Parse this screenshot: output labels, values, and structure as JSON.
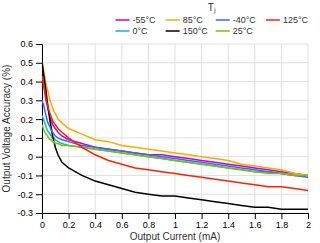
{
  "chart_data": {
    "type": "line",
    "xlabel": "Output Current (mA)",
    "ylabel": "Output Voltage Accuracy (%)",
    "legend_title": "Tⱼ",
    "x": [
      0.001,
      0.005,
      0.01,
      0.02,
      0.03,
      0.04,
      0.05,
      0.06,
      0.07,
      0.08,
      0.09,
      0.1,
      0.12,
      0.15,
      0.2,
      0.3,
      0.4,
      0.5,
      0.6,
      0.7,
      0.8,
      0.9,
      1.0,
      1.1,
      1.2,
      1.3,
      1.4,
      1.5,
      1.6,
      1.7,
      1.8,
      1.9,
      2.0
    ],
    "series": [
      {
        "name": "-55°C",
        "color": "#cc00cc",
        "values": [
          0.43,
          0.42,
          0.4,
          0.35,
          0.3,
          0.27,
          0.24,
          0.21,
          0.19,
          0.17,
          0.16,
          0.15,
          0.13,
          0.11,
          0.09,
          0.07,
          0.05,
          0.04,
          0.03,
          0.02,
          0.01,
          0.01,
          0.0,
          -0.01,
          -0.02,
          -0.03,
          -0.04,
          -0.05,
          -0.06,
          -0.07,
          -0.08,
          -0.09,
          -0.1
        ]
      },
      {
        "name": "0°C",
        "color": "#00bbcc",
        "values": [
          0.22,
          0.21,
          0.2,
          0.18,
          0.16,
          0.14,
          0.13,
          0.12,
          0.11,
          0.1,
          0.1,
          0.09,
          0.08,
          0.07,
          0.06,
          0.05,
          0.04,
          0.03,
          0.02,
          0.01,
          0.0,
          -0.01,
          -0.02,
          -0.03,
          -0.04,
          -0.05,
          -0.06,
          -0.07,
          -0.08,
          -0.08,
          -0.09,
          -0.1,
          -0.1
        ]
      },
      {
        "name": "85°C",
        "color": "#ffaa00",
        "values": [
          0.5,
          0.49,
          0.47,
          0.43,
          0.39,
          0.36,
          0.33,
          0.3,
          0.28,
          0.26,
          0.24,
          0.23,
          0.2,
          0.18,
          0.15,
          0.12,
          0.09,
          0.08,
          0.06,
          0.05,
          0.04,
          0.03,
          0.02,
          0.01,
          0.0,
          -0.01,
          -0.02,
          -0.04,
          -0.05,
          -0.06,
          -0.07,
          -0.09,
          -0.1
        ]
      },
      {
        "name": "150°C",
        "color": "#000000",
        "values": [
          0.5,
          0.48,
          0.45,
          0.4,
          0.35,
          0.29,
          0.24,
          0.19,
          0.15,
          0.11,
          0.08,
          0.05,
          0.01,
          -0.03,
          -0.06,
          -0.1,
          -0.13,
          -0.15,
          -0.17,
          -0.19,
          -0.2,
          -0.21,
          -0.21,
          -0.22,
          -0.23,
          -0.24,
          -0.25,
          -0.26,
          -0.27,
          -0.27,
          -0.28,
          -0.28,
          -0.28
        ]
      },
      {
        "name": "-40°C",
        "color": "#3366ff",
        "values": [
          0.3,
          0.29,
          0.28,
          0.25,
          0.22,
          0.19,
          0.17,
          0.16,
          0.14,
          0.13,
          0.12,
          0.11,
          0.1,
          0.09,
          0.08,
          0.06,
          0.05,
          0.04,
          0.03,
          0.02,
          0.01,
          0.0,
          -0.01,
          -0.02,
          -0.03,
          -0.04,
          -0.05,
          -0.06,
          -0.07,
          -0.08,
          -0.09,
          -0.1,
          -0.11
        ]
      },
      {
        "name": "25°C",
        "color": "#88bb00",
        "values": [
          0.17,
          0.16,
          0.15,
          0.13,
          0.12,
          0.11,
          0.1,
          0.09,
          0.09,
          0.08,
          0.08,
          0.07,
          0.07,
          0.06,
          0.06,
          0.05,
          0.04,
          0.03,
          0.02,
          0.01,
          0.0,
          -0.01,
          -0.02,
          -0.03,
          -0.04,
          -0.05,
          -0.06,
          -0.07,
          -0.08,
          -0.09,
          -0.09,
          -0.1,
          -0.1
        ]
      },
      {
        "name": "125°C",
        "color": "#ff2200",
        "values": [
          0.42,
          0.41,
          0.39,
          0.35,
          0.31,
          0.28,
          0.25,
          0.23,
          0.21,
          0.19,
          0.18,
          0.17,
          0.15,
          0.13,
          0.1,
          0.05,
          0.01,
          -0.02,
          -0.04,
          -0.06,
          -0.07,
          -0.08,
          -0.09,
          -0.1,
          -0.11,
          -0.12,
          -0.13,
          -0.14,
          -0.15,
          -0.16,
          -0.16,
          -0.17,
          -0.18
        ]
      }
    ],
    "xlim": [
      0,
      2.0
    ],
    "ylim": [
      -0.3,
      0.6
    ],
    "xticks": [
      0,
      0.2,
      0.4,
      0.6,
      0.8,
      1.0,
      1.2,
      1.4,
      1.6,
      1.8,
      2.0
    ],
    "yticks": [
      -0.3,
      -0.2,
      -0.1,
      0.0,
      0.1,
      0.2,
      0.3,
      0.4,
      0.5,
      0.6
    ],
    "grid": true,
    "legend": "upper right"
  }
}
